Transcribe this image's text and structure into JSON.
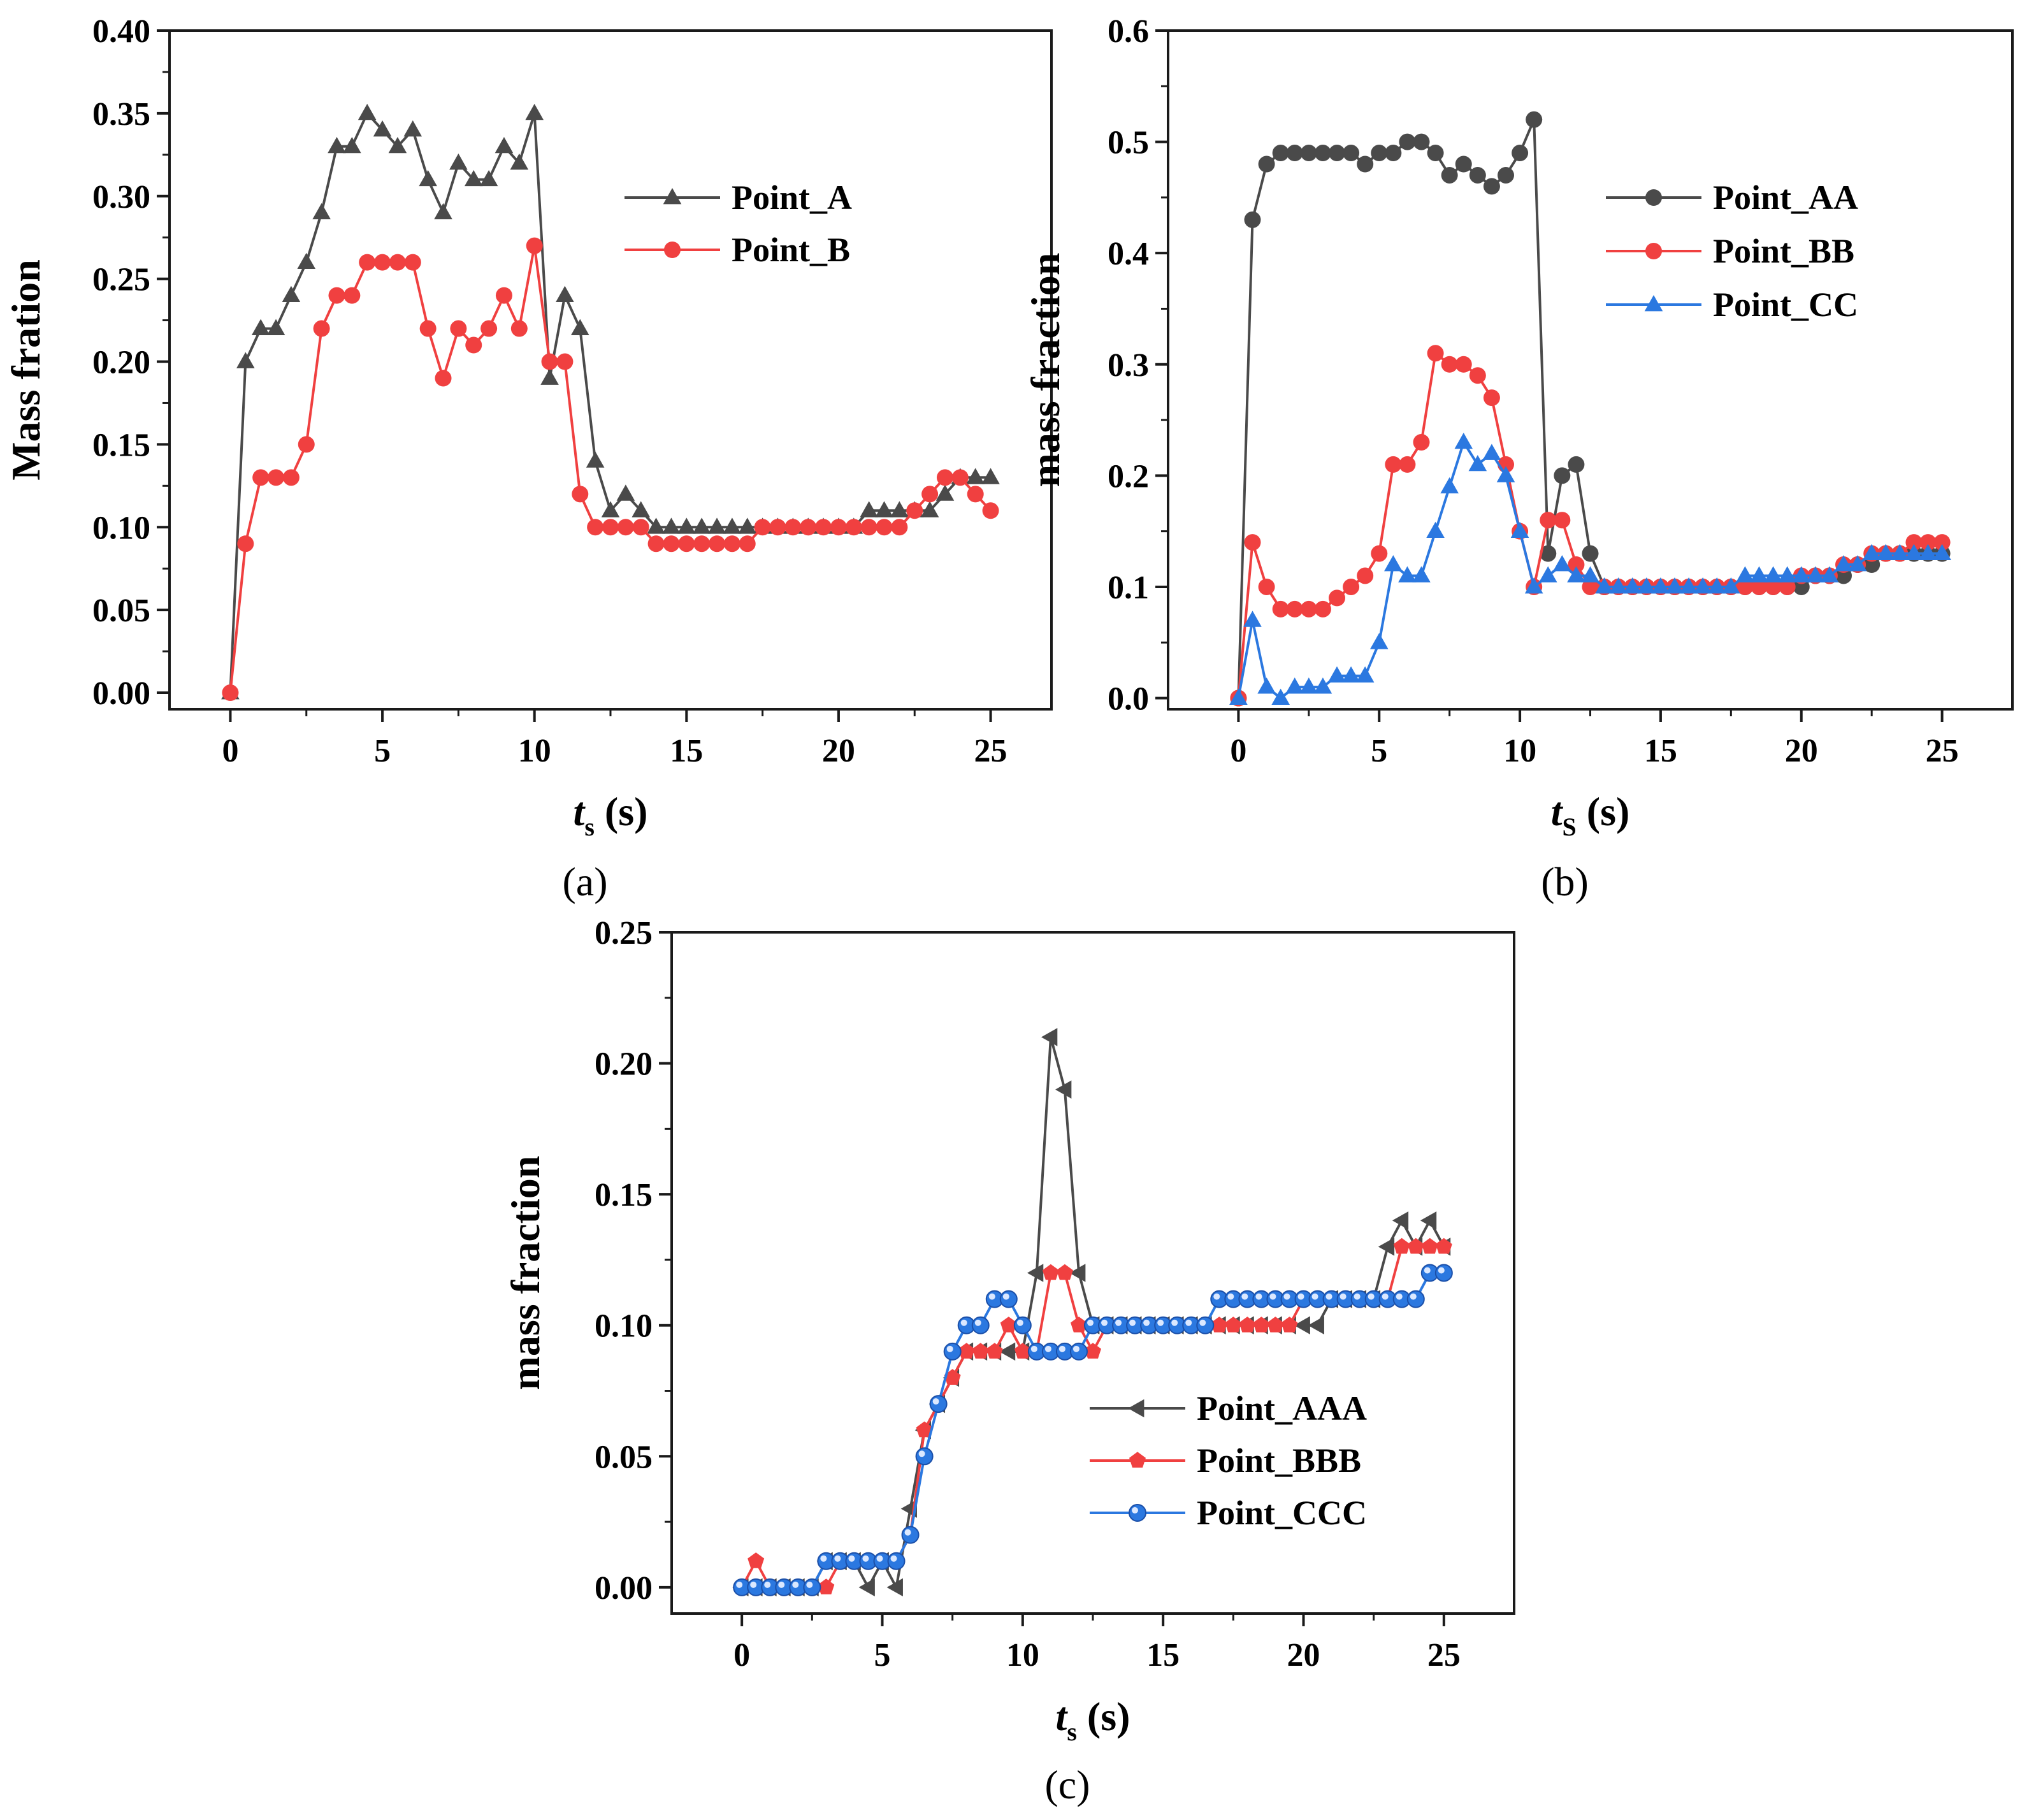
{
  "figure": {
    "panels": [
      "(a)",
      "(b)",
      "(c)"
    ]
  },
  "colors": {
    "black_series": "#4a4a4a",
    "red_series": "#f04040",
    "blue_series": "#2b78e0"
  },
  "chart_data": [
    {
      "id": "a",
      "type": "line",
      "panel_label": "(a)",
      "xlabel_italic": "t",
      "xlabel_sub": "s",
      "xlabel_rest": " (s)",
      "ylabel": "Mass fration",
      "xlim": [
        -2,
        27
      ],
      "ylim": [
        -0.01,
        0.4
      ],
      "xticks": [
        0,
        5,
        10,
        15,
        20,
        25
      ],
      "xtick_labels": [
        "0",
        "5",
        "10",
        "15",
        "20",
        "25"
      ],
      "yticks": [
        0.0,
        0.05,
        0.1,
        0.15,
        0.2,
        0.25,
        0.3,
        0.35,
        0.4
      ],
      "ytick_labels": [
        "0.00",
        "0.05",
        "0.10",
        "0.15",
        "0.20",
        "0.25",
        "0.30",
        "0.35",
        "0.40"
      ],
      "legend_position": "top-right",
      "series": [
        {
          "name": "Point_A",
          "color": "#4a4a4a",
          "marker": "triangle-up",
          "x": [
            0,
            0.5,
            1,
            1.5,
            2,
            2.5,
            3,
            3.5,
            4,
            4.5,
            5,
            5.5,
            6,
            6.5,
            7,
            7.5,
            8,
            8.5,
            9,
            9.5,
            10,
            10.5,
            11,
            11.5,
            12,
            12.5,
            13,
            13.5,
            14,
            14.5,
            15,
            15.5,
            16,
            16.5,
            17,
            17.5,
            18,
            18.5,
            19,
            19.5,
            20,
            20.5,
            21,
            21.5,
            22,
            22.5,
            23,
            23.5,
            24,
            24.5,
            25
          ],
          "y": [
            0,
            0.2,
            0.22,
            0.22,
            0.24,
            0.26,
            0.29,
            0.33,
            0.33,
            0.35,
            0.34,
            0.33,
            0.34,
            0.31,
            0.29,
            0.32,
            0.31,
            0.31,
            0.33,
            0.32,
            0.35,
            0.19,
            0.24,
            0.22,
            0.14,
            0.11,
            0.12,
            0.11,
            0.1,
            0.1,
            0.1,
            0.1,
            0.1,
            0.1,
            0.1,
            0.1,
            0.1,
            0.1,
            0.1,
            0.1,
            0.1,
            0.1,
            0.11,
            0.11,
            0.11,
            0.11,
            0.11,
            0.12,
            0.13,
            0.13,
            0.13
          ]
        },
        {
          "name": "Point_B",
          "color": "#f04040",
          "marker": "circle",
          "x": [
            0,
            0.5,
            1,
            1.5,
            2,
            2.5,
            3,
            3.5,
            4,
            4.5,
            5,
            5.5,
            6,
            6.5,
            7,
            7.5,
            8,
            8.5,
            9,
            9.5,
            10,
            10.5,
            11,
            11.5,
            12,
            12.5,
            13,
            13.5,
            14,
            14.5,
            15,
            15.5,
            16,
            16.5,
            17,
            17.5,
            18,
            18.5,
            19,
            19.5,
            20,
            20.5,
            21,
            21.5,
            22,
            22.5,
            23,
            23.5,
            24,
            24.5,
            25
          ],
          "y": [
            0,
            0.09,
            0.13,
            0.13,
            0.13,
            0.15,
            0.22,
            0.24,
            0.24,
            0.26,
            0.26,
            0.26,
            0.26,
            0.22,
            0.19,
            0.22,
            0.21,
            0.22,
            0.24,
            0.22,
            0.27,
            0.2,
            0.2,
            0.12,
            0.1,
            0.1,
            0.1,
            0.1,
            0.09,
            0.09,
            0.09,
            0.09,
            0.09,
            0.09,
            0.09,
            0.1,
            0.1,
            0.1,
            0.1,
            0.1,
            0.1,
            0.1,
            0.1,
            0.1,
            0.1,
            0.11,
            0.12,
            0.13,
            0.13,
            0.12,
            0.11
          ]
        }
      ]
    },
    {
      "id": "b",
      "type": "line",
      "panel_label": "(b)",
      "xlabel_italic": "t",
      "xlabel_sub": "S",
      "xlabel_rest": " (s)",
      "ylabel": "mass fraction",
      "xlim": [
        -2.5,
        27.5
      ],
      "ylim": [
        -0.01,
        0.6
      ],
      "xticks": [
        0,
        5,
        10,
        15,
        20,
        25
      ],
      "xtick_labels": [
        "0",
        "5",
        "10",
        "15",
        "20",
        "25"
      ],
      "yticks": [
        0.0,
        0.1,
        0.2,
        0.3,
        0.4,
        0.5,
        0.6
      ],
      "ytick_labels": [
        "0.0",
        "0.1",
        "0.2",
        "0.3",
        "0.4",
        "0.5",
        "0.6"
      ],
      "legend_position": "top-right",
      "series": [
        {
          "name": "Point_AA",
          "color": "#4a4a4a",
          "marker": "circle",
          "x": [
            0,
            0.5,
            1,
            1.5,
            2,
            2.5,
            3,
            3.5,
            4,
            4.5,
            5,
            5.5,
            6,
            6.5,
            7,
            7.5,
            8,
            8.5,
            9,
            9.5,
            10,
            10.5,
            11,
            11.5,
            12,
            12.5,
            13,
            13.5,
            14,
            14.5,
            15,
            15.5,
            16,
            16.5,
            17,
            17.5,
            18,
            18.5,
            19,
            19.5,
            20,
            20.5,
            21,
            21.5,
            22,
            22.5,
            23,
            23.5,
            24,
            24.5,
            25
          ],
          "y": [
            0,
            0.43,
            0.48,
            0.49,
            0.49,
            0.49,
            0.49,
            0.49,
            0.49,
            0.48,
            0.49,
            0.49,
            0.5,
            0.5,
            0.49,
            0.47,
            0.48,
            0.47,
            0.46,
            0.47,
            0.49,
            0.52,
            0.13,
            0.2,
            0.21,
            0.13,
            0.1,
            0.1,
            0.1,
            0.1,
            0.1,
            0.1,
            0.1,
            0.1,
            0.1,
            0.1,
            0.1,
            0.1,
            0.1,
            0.1,
            0.1,
            0.11,
            0.11,
            0.11,
            0.12,
            0.12,
            0.13,
            0.13,
            0.13,
            0.13,
            0.13
          ]
        },
        {
          "name": "Point_BB",
          "color": "#f04040",
          "marker": "circle",
          "x": [
            0,
            0.5,
            1,
            1.5,
            2,
            2.5,
            3,
            3.5,
            4,
            4.5,
            5,
            5.5,
            6,
            6.5,
            7,
            7.5,
            8,
            8.5,
            9,
            9.5,
            10,
            10.5,
            11,
            11.5,
            12,
            12.5,
            13,
            13.5,
            14,
            14.5,
            15,
            15.5,
            16,
            16.5,
            17,
            17.5,
            18,
            18.5,
            19,
            19.5,
            20,
            20.5,
            21,
            21.5,
            22,
            22.5,
            23,
            23.5,
            24,
            24.5,
            25
          ],
          "y": [
            0,
            0.14,
            0.1,
            0.08,
            0.08,
            0.08,
            0.08,
            0.09,
            0.1,
            0.11,
            0.13,
            0.21,
            0.21,
            0.23,
            0.31,
            0.3,
            0.3,
            0.29,
            0.27,
            0.21,
            0.15,
            0.1,
            0.16,
            0.16,
            0.12,
            0.1,
            0.1,
            0.1,
            0.1,
            0.1,
            0.1,
            0.1,
            0.1,
            0.1,
            0.1,
            0.1,
            0.1,
            0.1,
            0.1,
            0.1,
            0.11,
            0.11,
            0.11,
            0.12,
            0.12,
            0.13,
            0.13,
            0.13,
            0.14,
            0.14,
            0.14
          ]
        },
        {
          "name": "Point_CC",
          "color": "#2b78e0",
          "marker": "triangle-up",
          "x": [
            0,
            0.5,
            1,
            1.5,
            2,
            2.5,
            3,
            3.5,
            4,
            4.5,
            5,
            5.5,
            6,
            6.5,
            7,
            7.5,
            8,
            8.5,
            9,
            9.5,
            10,
            10.5,
            11,
            11.5,
            12,
            12.5,
            13,
            13.5,
            14,
            14.5,
            15,
            15.5,
            16,
            16.5,
            17,
            17.5,
            18,
            18.5,
            19,
            19.5,
            20,
            20.5,
            21,
            21.5,
            22,
            22.5,
            23,
            23.5,
            24,
            24.5,
            25
          ],
          "y": [
            0,
            0.07,
            0.01,
            0,
            0.01,
            0.01,
            0.01,
            0.02,
            0.02,
            0.02,
            0.05,
            0.12,
            0.11,
            0.11,
            0.15,
            0.19,
            0.23,
            0.21,
            0.22,
            0.2,
            0.15,
            0.1,
            0.11,
            0.12,
            0.11,
            0.11,
            0.1,
            0.1,
            0.1,
            0.1,
            0.1,
            0.1,
            0.1,
            0.1,
            0.1,
            0.1,
            0.11,
            0.11,
            0.11,
            0.11,
            0.11,
            0.11,
            0.11,
            0.12,
            0.12,
            0.13,
            0.13,
            0.13,
            0.13,
            0.13,
            0.13
          ]
        }
      ]
    },
    {
      "id": "c",
      "type": "line",
      "panel_label": "(c)",
      "xlabel_italic": "t",
      "xlabel_sub": "s",
      "xlabel_rest": " (s)",
      "ylabel": "mass fraction",
      "xlim": [
        -2.5,
        27.5
      ],
      "ylim": [
        -0.01,
        0.25
      ],
      "xticks": [
        0,
        5,
        10,
        15,
        20,
        25
      ],
      "xtick_labels": [
        "0",
        "5",
        "10",
        "15",
        "20",
        "25"
      ],
      "yticks": [
        0.0,
        0.05,
        0.1,
        0.15,
        0.2,
        0.25
      ],
      "ytick_labels": [
        "0.00",
        "0.05",
        "0.10",
        "0.15",
        "0.20",
        "0.25"
      ],
      "legend_position": "bottom-right",
      "series": [
        {
          "name": "Point_AAA",
          "color": "#4a4a4a",
          "marker": "triangle-left",
          "x": [
            0,
            0.5,
            1,
            1.5,
            2,
            2.5,
            3,
            3.5,
            4,
            4.5,
            5,
            5.5,
            6,
            6.5,
            7,
            7.5,
            8,
            8.5,
            9,
            9.5,
            10,
            10.5,
            11,
            11.5,
            12,
            12.5,
            13,
            13.5,
            14,
            14.5,
            15,
            15.5,
            16,
            16.5,
            17,
            17.5,
            18,
            18.5,
            19,
            19.5,
            20,
            20.5,
            21,
            21.5,
            22,
            22.5,
            23,
            23.5,
            24,
            24.5,
            25
          ],
          "y": [
            0,
            0,
            0,
            0,
            0,
            0,
            0.01,
            0.01,
            0.01,
            0,
            0.01,
            0,
            0.03,
            0.06,
            0.07,
            0.08,
            0.09,
            0.09,
            0.09,
            0.09,
            0.09,
            0.12,
            0.21,
            0.19,
            0.12,
            0.1,
            0.1,
            0.1,
            0.1,
            0.1,
            0.1,
            0.1,
            0.1,
            0.1,
            0.1,
            0.1,
            0.1,
            0.1,
            0.1,
            0.1,
            0.1,
            0.1,
            0.11,
            0.11,
            0.11,
            0.11,
            0.13,
            0.14,
            0.13,
            0.14,
            0.13
          ]
        },
        {
          "name": "Point_BBB",
          "color": "#f04040",
          "marker": "pentagon",
          "x": [
            0,
            0.5,
            1,
            1.5,
            2,
            2.5,
            3,
            3.5,
            4,
            4.5,
            5,
            5.5,
            6,
            6.5,
            7,
            7.5,
            8,
            8.5,
            9,
            9.5,
            10,
            10.5,
            11,
            11.5,
            12,
            12.5,
            13,
            13.5,
            14,
            14.5,
            15,
            15.5,
            16,
            16.5,
            17,
            17.5,
            18,
            18.5,
            19,
            19.5,
            20,
            20.5,
            21,
            21.5,
            22,
            22.5,
            23,
            23.5,
            24,
            24.5,
            25
          ],
          "y": [
            0,
            0.01,
            0,
            0,
            0,
            0,
            0,
            0.01,
            0.01,
            0.01,
            0.01,
            0.01,
            0.02,
            0.06,
            0.07,
            0.08,
            0.09,
            0.09,
            0.09,
            0.1,
            0.09,
            0.09,
            0.12,
            0.12,
            0.1,
            0.09,
            0.1,
            0.1,
            0.1,
            0.1,
            0.1,
            0.1,
            0.1,
            0.1,
            0.1,
            0.1,
            0.1,
            0.1,
            0.1,
            0.1,
            0.11,
            0.11,
            0.11,
            0.11,
            0.11,
            0.11,
            0.11,
            0.13,
            0.13,
            0.13,
            0.13
          ]
        },
        {
          "name": "Point_CCC",
          "color": "#2b78e0",
          "marker": "circle",
          "x": [
            0,
            0.5,
            1,
            1.5,
            2,
            2.5,
            3,
            3.5,
            4,
            4.5,
            5,
            5.5,
            6,
            6.5,
            7,
            7.5,
            8,
            8.5,
            9,
            9.5,
            10,
            10.5,
            11,
            11.5,
            12,
            12.5,
            13,
            13.5,
            14,
            14.5,
            15,
            15.5,
            16,
            16.5,
            17,
            17.5,
            18,
            18.5,
            19,
            19.5,
            20,
            20.5,
            21,
            21.5,
            22,
            22.5,
            23,
            23.5,
            24,
            24.5,
            25
          ],
          "y": [
            0,
            0,
            0,
            0,
            0,
            0,
            0.01,
            0.01,
            0.01,
            0.01,
            0.01,
            0.01,
            0.02,
            0.05,
            0.07,
            0.09,
            0.1,
            0.1,
            0.11,
            0.11,
            0.1,
            0.09,
            0.09,
            0.09,
            0.09,
            0.1,
            0.1,
            0.1,
            0.1,
            0.1,
            0.1,
            0.1,
            0.1,
            0.1,
            0.11,
            0.11,
            0.11,
            0.11,
            0.11,
            0.11,
            0.11,
            0.11,
            0.11,
            0.11,
            0.11,
            0.11,
            0.11,
            0.11,
            0.11,
            0.12,
            0.12
          ]
        }
      ]
    }
  ]
}
